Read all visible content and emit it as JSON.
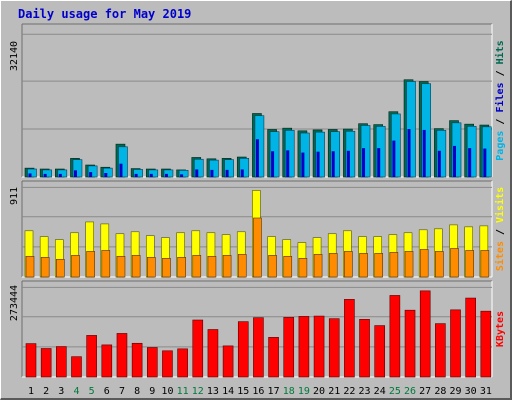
{
  "title": "Daily usage for May 2019",
  "colors": {
    "background": "#bcbcbc",
    "hits": "#006850",
    "files": "#0000c8",
    "pages": "#00b4e6",
    "visits": "#ffff00",
    "sites": "#ff8c00",
    "kbytes": "#ff0000",
    "weekend_label": "#007a3c",
    "weekday_label": "#000000"
  },
  "chart_data": [
    {
      "type": "bar",
      "panel": "top",
      "title": "",
      "ymax_label": "32140",
      "ylim": [
        0,
        32140
      ],
      "legend": [
        "Pages",
        "Files",
        "Hits"
      ],
      "categories": [
        "1",
        "2",
        "3",
        "4",
        "5",
        "6",
        "7",
        "8",
        "9",
        "10",
        "11",
        "12",
        "13",
        "14",
        "15",
        "16",
        "17",
        "18",
        "19",
        "20",
        "21",
        "22",
        "23",
        "24",
        "25",
        "26",
        "27",
        "28",
        "29",
        "30",
        "31"
      ],
      "weekend_days": [
        "4",
        "5",
        "11",
        "12",
        "18",
        "19",
        "25",
        "26"
      ],
      "series": [
        {
          "name": "Hits",
          "values": [
            2000,
            1800,
            1800,
            4200,
            2700,
            2200,
            7400,
            1900,
            1800,
            1800,
            1600,
            4400,
            4100,
            4200,
            4500,
            14300,
            10700,
            11000,
            10400,
            10600,
            10700,
            10800,
            12000,
            11800,
            14700,
            21900,
            21500,
            10900,
            12700,
            11900,
            11700
          ]
        },
        {
          "name": "Files",
          "values": [
            800,
            700,
            700,
            1500,
            1100,
            900,
            3000,
            700,
            700,
            700,
            600,
            1700,
            1600,
            1600,
            1700,
            8500,
            5800,
            6000,
            5500,
            5700,
            5800,
            5900,
            6500,
            6500,
            8200,
            10800,
            10600,
            5900,
            7000,
            6500,
            6400
          ]
        },
        {
          "name": "Pages",
          "values": [
            1800,
            1600,
            1600,
            3900,
            2500,
            2000,
            6800,
            1700,
            1600,
            1600,
            1500,
            4000,
            3800,
            3900,
            4200,
            13800,
            10200,
            10500,
            9900,
            10100,
            10200,
            10300,
            11600,
            11400,
            14200,
            21500,
            21000,
            10500,
            12200,
            11400,
            11300
          ]
        }
      ]
    },
    {
      "type": "bar",
      "panel": "middle",
      "title": "",
      "ymax_label": "911",
      "ylim": [
        0,
        911
      ],
      "legend": [
        "Sites",
        "Visits"
      ],
      "categories": [
        "1",
        "2",
        "3",
        "4",
        "5",
        "6",
        "7",
        "8",
        "9",
        "10",
        "11",
        "12",
        "13",
        "14",
        "15",
        "16",
        "17",
        "18",
        "19",
        "20",
        "21",
        "22",
        "23",
        "24",
        "25",
        "26",
        "27",
        "28",
        "29",
        "30",
        "31"
      ],
      "series": [
        {
          "name": "Visits",
          "values": [
            470,
            410,
            380,
            450,
            560,
            540,
            440,
            460,
            420,
            400,
            450,
            470,
            450,
            430,
            460,
            880,
            410,
            380,
            350,
            400,
            440,
            470,
            410,
            410,
            430,
            450,
            480,
            490,
            530,
            510,
            520
          ]
        },
        {
          "name": "Sites",
          "values": [
            210,
            200,
            180,
            220,
            260,
            270,
            210,
            220,
            200,
            190,
            200,
            220,
            210,
            220,
            230,
            600,
            220,
            210,
            190,
            230,
            240,
            260,
            240,
            240,
            250,
            260,
            280,
            260,
            290,
            270,
            270
          ]
        }
      ]
    },
    {
      "type": "bar",
      "panel": "bottom",
      "title": "",
      "ymax_label": "273444",
      "ylim": [
        0,
        273444
      ],
      "legend": [
        "KBytes"
      ],
      "categories": [
        "1",
        "2",
        "3",
        "4",
        "5",
        "6",
        "7",
        "8",
        "9",
        "10",
        "11",
        "12",
        "13",
        "14",
        "15",
        "16",
        "17",
        "18",
        "19",
        "20",
        "21",
        "22",
        "23",
        "24",
        "25",
        "26",
        "27",
        "28",
        "29",
        "30",
        "31"
      ],
      "series": [
        {
          "name": "KBytes",
          "values": [
            102000,
            87000,
            93000,
            62000,
            127000,
            98000,
            133000,
            103000,
            90000,
            80000,
            86000,
            174000,
            145000,
            95000,
            169000,
            181000,
            121000,
            182000,
            185000,
            186000,
            178000,
            237000,
            176000,
            157000,
            249000,
            204000,
            263000,
            163000,
            205000,
            241000,
            201000
          ]
        }
      ]
    }
  ]
}
